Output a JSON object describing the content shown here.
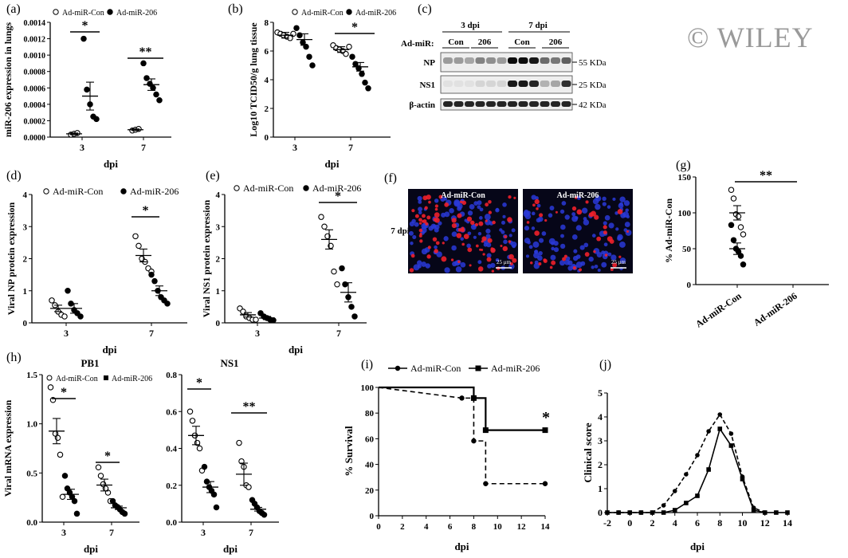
{
  "watermark": "© WILEY",
  "panels": {
    "a": {
      "label": "(a)",
      "legend": [
        "Ad-miR-Con",
        "Ad-miR-206"
      ],
      "ylabel": "miR-206 expression in lungs",
      "xlabel": "dpi",
      "yticks": [
        "0.0000",
        "0.0002",
        "0.0004",
        "0.0006",
        "0.0008",
        "0.0010",
        "0.0012",
        "0.0014"
      ],
      "xticks": [
        "3",
        "7"
      ],
      "sig": [
        "*",
        "**"
      ]
    },
    "b": {
      "label": "(b)",
      "legend": [
        "Ad-miR-Con",
        "Ad-miR-206"
      ],
      "ylabel": "Log10 TCID50/g lung tissue",
      "xlabel": "dpi",
      "yticks": [
        "0",
        "2",
        "4",
        "6",
        "8"
      ],
      "xticks": [
        "3",
        "7"
      ],
      "sig": [
        "*"
      ]
    },
    "c": {
      "label": "(c)",
      "groups": [
        "3 dpi",
        "7 dpi"
      ],
      "admir_label": "Ad-miR:",
      "lanes": [
        "Con",
        "206",
        "Con",
        "206"
      ],
      "rows": [
        "NP",
        "NS1",
        "β-actin"
      ],
      "sizes": [
        "55 KDa",
        "25 KDa",
        "42 KDa"
      ]
    },
    "d": {
      "label": "(d)",
      "legend": [
        "Ad-miR-Con",
        "Ad-miR-206"
      ],
      "ylabel": "Viral NP protein expression",
      "xlabel": "dpi",
      "yticks": [
        "0",
        "1",
        "2",
        "3",
        "4"
      ],
      "xticks": [
        "3",
        "7"
      ],
      "sig": [
        "*"
      ]
    },
    "e": {
      "label": "(e)",
      "legend": [
        "Ad-miR-Con",
        "Ad-miR-206"
      ],
      "ylabel": "Viral NS1 protein expression",
      "xlabel": "dpi",
      "yticks": [
        "0",
        "1",
        "2",
        "3",
        "4"
      ],
      "xticks": [
        "3",
        "7"
      ],
      "sig": [
        "*"
      ]
    },
    "f": {
      "label": "(f)",
      "titles": [
        "Ad-miR-Con",
        "Ad-miR-206"
      ],
      "rowlabel": "7 dpi",
      "scale": "25 μm"
    },
    "g": {
      "label": "(g)",
      "ylabel": "% Ad-miR-Con",
      "yticks": [
        "0",
        "50",
        "100",
        "150"
      ],
      "xticks": [
        "Ad-miR-Con",
        "Ad-miR-206"
      ],
      "sig": [
        "**"
      ]
    },
    "h": {
      "label": "(h)",
      "ylabel": "Viral mRNA expression",
      "xlabel": "dpi",
      "legend": [
        "Ad-miR-Con",
        "Ad-miR-206"
      ],
      "pb1": {
        "title": "PB1",
        "yticks": [
          "0.0",
          "0.5",
          "1.0",
          "1.5"
        ],
        "xticks": [
          "3",
          "7"
        ],
        "sig": [
          "*",
          "*"
        ]
      },
      "ns1": {
        "title": "NS1",
        "yticks": [
          "0.0",
          "0.2",
          "0.4",
          "0.6",
          "0.8"
        ],
        "xticks": [
          "3",
          "7"
        ],
        "sig": [
          "*",
          "**"
        ]
      }
    },
    "i": {
      "label": "(i)",
      "legend": [
        "Ad-miR-Con",
        "Ad-miR-206"
      ],
      "ylabel": "% Survival",
      "xlabel": "dpi",
      "yticks": [
        "0",
        "20",
        "40",
        "60",
        "80",
        "100"
      ],
      "xticks": [
        "0",
        "2",
        "4",
        "6",
        "8",
        "10",
        "12",
        "14"
      ],
      "sig": [
        "*"
      ]
    },
    "j": {
      "label": "(j)",
      "ylabel": "Clinical score",
      "xlabel": "dpi",
      "yticks": [
        "0",
        "1",
        "2",
        "3",
        "4",
        "5"
      ],
      "xticks": [
        "-2",
        "0",
        "2",
        "4",
        "6",
        "8",
        "10",
        "12",
        "14"
      ]
    }
  },
  "chart_data": [
    {
      "panel": "a",
      "type": "scatter",
      "categories": [
        "3",
        "7"
      ],
      "ylim": [
        0,
        0.0014
      ],
      "series": [
        {
          "name": "Ad-miR-Con",
          "points": [
            [
              3e-05,
              4e-05,
              5e-05
            ],
            [
              8e-05,
              9e-05,
              0.0001
            ]
          ],
          "mean": [
            4e-05,
            9e-05
          ],
          "sem": [
            1e-05,
            1e-05
          ]
        },
        {
          "name": "Ad-miR-206",
          "points": [
            [
              0.0012,
              0.00058,
              0.0004,
              0.00025,
              0.00022
            ],
            [
              0.0009,
              0.00072,
              0.00065,
              0.0006,
              0.00052,
              0.00045
            ]
          ],
          "mean": [
            0.0005,
            0.00064
          ],
          "sem": [
            0.00017,
            7e-05
          ]
        }
      ]
    },
    {
      "panel": "b",
      "type": "scatter",
      "categories": [
        "3",
        "7"
      ],
      "ylim": [
        0,
        8
      ],
      "series": [
        {
          "name": "Ad-miR-Con",
          "points": [
            [
              7.3,
              7.2,
              7.1,
              7.0,
              6.9,
              7.2
            ],
            [
              6.4,
              6.2,
              6.1,
              6.0,
              5.8,
              6.3
            ]
          ],
          "mean": [
            7.1,
            6.1
          ],
          "sem": [
            0.2,
            0.2
          ]
        },
        {
          "name": "Ad-miR-206",
          "points": [
            [
              7.6,
              7.1,
              6.6,
              6.3,
              5.6,
              5.0
            ],
            [
              5.6,
              5.1,
              4.8,
              4.4,
              3.8,
              3.4
            ]
          ],
          "mean": [
            6.8,
            4.9
          ],
          "sem": [
            0.4,
            0.3
          ]
        }
      ]
    },
    {
      "panel": "d",
      "type": "scatter",
      "categories": [
        "3",
        "7"
      ],
      "ylim": [
        0,
        4
      ],
      "series": [
        {
          "name": "Ad-miR-Con",
          "points": [
            [
              0.7,
              0.55,
              0.35,
              0.25,
              0.2
            ],
            [
              2.7,
              2.4,
              2.0,
              1.9,
              1.7,
              1.6
            ]
          ],
          "mean": [
            0.45,
            2.1
          ],
          "sem": [
            0.1,
            0.2
          ]
        },
        {
          "name": "Ad-miR-206",
          "points": [
            [
              1.0,
              0.6,
              0.4,
              0.3,
              0.2
            ],
            [
              1.5,
              1.3,
              1.0,
              0.8,
              0.7,
              0.6
            ]
          ],
          "mean": [
            0.45,
            1.0
          ],
          "sem": [
            0.15,
            0.15
          ]
        }
      ]
    },
    {
      "panel": "e",
      "type": "scatter",
      "categories": [
        "3",
        "7"
      ],
      "ylim": [
        0,
        4
      ],
      "series": [
        {
          "name": "Ad-miR-Con",
          "points": [
            [
              0.45,
              0.35,
              0.2,
              0.15,
              0.1,
              0.1
            ],
            [
              3.3,
              3.0,
              2.7,
              2.4,
              1.6,
              1.2
            ]
          ],
          "mean": [
            0.25,
            2.6
          ],
          "sem": [
            0.07,
            0.3
          ]
        },
        {
          "name": "Ad-miR-206",
          "points": [
            [
              0.3,
              0.2,
              0.15,
              0.1,
              0.08
            ],
            [
              1.7,
              1.2,
              0.8,
              0.5,
              0.2
            ]
          ],
          "mean": [
            0.15,
            0.95
          ],
          "sem": [
            0.05,
            0.3
          ]
        }
      ]
    },
    {
      "panel": "g",
      "type": "scatter",
      "categories": [
        "Ad-miR-Con",
        "Ad-miR-206"
      ],
      "ylim": [
        0,
        150
      ],
      "series": [
        {
          "name": "Ad-miR-Con",
          "points": [
            [
              132,
              120,
              98,
              95,
              80,
              70
            ]
          ],
          "mean": [
            100
          ],
          "sem": [
            10
          ]
        },
        {
          "name": "Ad-miR-206",
          "points": [
            [
              83,
              62,
              50,
              46,
              40,
              28
            ]
          ],
          "mean": [
            50
          ],
          "sem": [
            8
          ]
        }
      ]
    },
    {
      "panel": "h-PB1",
      "type": "scatter",
      "categories": [
        "3",
        "7"
      ],
      "ylim": [
        0,
        1.75
      ],
      "series": [
        {
          "name": "Ad-miR-Con",
          "points": [
            [
              1.6,
              1.45,
              1.05,
              1.0,
              0.8,
              0.3
            ],
            [
              0.65,
              0.55,
              0.45,
              0.4,
              0.35,
              0.25
            ]
          ],
          "mean": [
            1.08,
            0.44
          ],
          "sem": [
            0.15,
            0.07
          ]
        },
        {
          "name": "Ad-miR-206",
          "points": [
            [
              0.55,
              0.4,
              0.35,
              0.3,
              0.25,
              0.1
            ],
            [
              0.25,
              0.2,
              0.18,
              0.15,
              0.12,
              0.1
            ]
          ],
          "mean": [
            0.33,
            0.17
          ],
          "sem": [
            0.06,
            0.02
          ]
        }
      ]
    },
    {
      "panel": "h-NS1",
      "type": "scatter",
      "categories": [
        "3",
        "7"
      ],
      "ylim": [
        0,
        0.8
      ],
      "series": [
        {
          "name": "Ad-miR-Con",
          "points": [
            [
              0.6,
              0.55,
              0.47,
              0.43,
              0.4,
              0.28
            ],
            [
              0.43,
              0.33,
              0.3,
              0.2,
              0.19
            ]
          ],
          "mean": [
            0.47,
            0.26
          ],
          "sem": [
            0.05,
            0.06
          ]
        },
        {
          "name": "Ad-miR-206",
          "points": [
            [
              0.3,
              0.22,
              0.19,
              0.17,
              0.15,
              0.08
            ],
            [
              0.12,
              0.1,
              0.08,
              0.06,
              0.05,
              0.04
            ]
          ],
          "mean": [
            0.19,
            0.07
          ],
          "sem": [
            0.03,
            0.01
          ]
        }
      ]
    },
    {
      "panel": "i",
      "type": "line",
      "xlim": [
        0,
        14
      ],
      "ylim": [
        0,
        100
      ],
      "series": [
        {
          "name": "Ad-miR-Con",
          "style": "dashed",
          "x": [
            0,
            7,
            8,
            8,
            9,
            9,
            14
          ],
          "y": [
            100,
            91.7,
            91.7,
            58.3,
            58.3,
            25,
            25
          ],
          "markers_x": [
            7,
            8,
            9,
            14
          ],
          "markers_y": [
            91.7,
            58.3,
            25,
            25
          ]
        },
        {
          "name": "Ad-miR-206",
          "style": "solid",
          "x": [
            0,
            8,
            8,
            9,
            9,
            14
          ],
          "y": [
            100,
            100,
            91.7,
            91.7,
            66.7,
            66.7
          ],
          "markers_x": [
            8,
            9,
            14
          ],
          "markers_y": [
            91.7,
            66.7,
            66.7
          ]
        }
      ]
    },
    {
      "panel": "j",
      "type": "line",
      "xlim": [
        -2,
        14
      ],
      "ylim": [
        0,
        5
      ],
      "series": [
        {
          "name": "Ad-miR-Con",
          "style": "dashed",
          "marker": "circle",
          "x": [
            -2,
            -1,
            0,
            1,
            2,
            3,
            4,
            5,
            6,
            7,
            8,
            9,
            10,
            11,
            12
          ],
          "y": [
            0,
            0,
            0,
            0,
            0,
            0.3,
            0.9,
            1.6,
            2.4,
            3.4,
            4.1,
            3.3,
            1.5,
            0.2,
            0
          ]
        },
        {
          "name": "Ad-miR-206",
          "style": "solid",
          "marker": "square",
          "x": [
            -2,
            -1,
            0,
            1,
            2,
            3,
            4,
            5,
            6,
            7,
            8,
            9,
            10,
            11,
            12,
            13,
            14
          ],
          "y": [
            0,
            0,
            0,
            0,
            0,
            0,
            0.1,
            0.4,
            0.7,
            1.8,
            3.5,
            2.8,
            1.4,
            0.1,
            0,
            0,
            0
          ]
        }
      ]
    }
  ]
}
